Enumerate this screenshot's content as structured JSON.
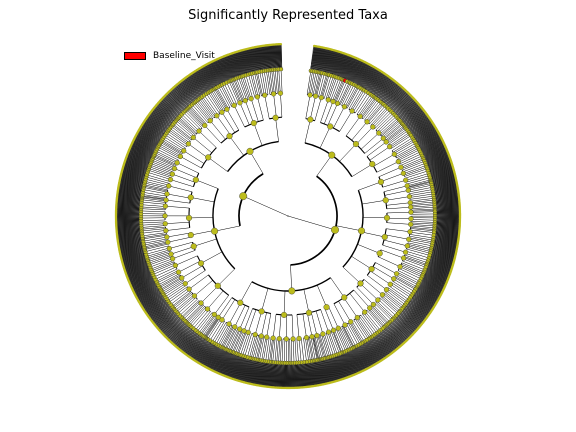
{
  "title": "Significantly Represented Taxa",
  "legend": [
    {
      "label": "Baseline_Visit",
      "color": "#ff0000"
    }
  ],
  "colors": {
    "node_default": "#bcbc1c",
    "node_highlight": "#ff0000",
    "edge": "#000000"
  }
}
